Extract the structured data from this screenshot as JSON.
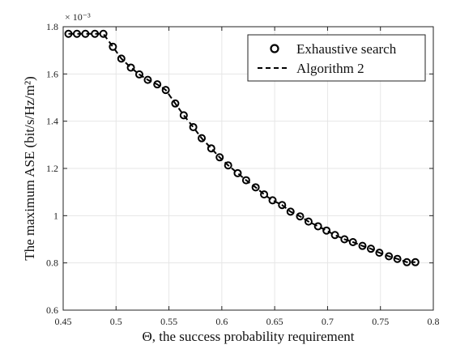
{
  "chart_data": {
    "type": "line",
    "title": "",
    "xlabel": "Θ, the success probability requirement",
    "ylabel": "The maximum ASE (bit/s/Hz/m²)",
    "y_multiplier_label": "× 10⁻³",
    "xlim": [
      0.45,
      0.8
    ],
    "ylim": [
      0.6,
      1.8
    ],
    "x_ticks": [
      "0.45",
      "0.5",
      "0.55",
      "0.6",
      "0.65",
      "0.7",
      "0.75",
      "0.8"
    ],
    "y_ticks": [
      "0.6",
      "0.8",
      "1",
      "1.2",
      "1.4",
      "1.6",
      "1.8"
    ],
    "grid": true,
    "legend_position": "top-right",
    "series": [
      {
        "name": "Exhaustive search",
        "style": "markers-circle",
        "color": "#000000",
        "x": [
          0.455,
          0.463,
          0.471,
          0.48,
          0.488,
          0.497,
          0.505,
          0.514,
          0.522,
          0.53,
          0.539,
          0.547,
          0.556,
          0.564,
          0.573,
          0.581,
          0.59,
          0.598,
          0.606,
          0.615,
          0.623,
          0.632,
          0.64,
          0.648,
          0.657,
          0.665,
          0.674,
          0.682,
          0.691,
          0.699,
          0.707,
          0.716,
          0.724,
          0.733,
          0.741,
          0.749,
          0.758,
          0.766,
          0.775,
          0.783
        ],
        "y": [
          1.77,
          1.77,
          1.77,
          1.77,
          1.77,
          1.715,
          1.665,
          1.627,
          1.598,
          1.575,
          1.556,
          1.532,
          1.475,
          1.425,
          1.375,
          1.328,
          1.285,
          1.247,
          1.213,
          1.18,
          1.15,
          1.12,
          1.09,
          1.065,
          1.045,
          1.017,
          0.997,
          0.975,
          0.955,
          0.937,
          0.918,
          0.9,
          0.888,
          0.872,
          0.86,
          0.843,
          0.828,
          0.817,
          0.803,
          0.803
        ]
      },
      {
        "name": "Algorithm 2",
        "style": "dashed-line",
        "color": "#000000",
        "x": [
          0.455,
          0.463,
          0.471,
          0.48,
          0.488,
          0.497,
          0.505,
          0.514,
          0.522,
          0.53,
          0.539,
          0.547,
          0.556,
          0.564,
          0.573,
          0.581,
          0.59,
          0.598,
          0.606,
          0.615,
          0.623,
          0.632,
          0.64,
          0.648,
          0.657,
          0.665,
          0.674,
          0.682,
          0.691,
          0.699,
          0.707,
          0.716,
          0.724,
          0.733,
          0.741,
          0.749,
          0.758,
          0.766,
          0.775,
          0.783
        ],
        "y": [
          1.77,
          1.77,
          1.77,
          1.77,
          1.77,
          1.715,
          1.665,
          1.627,
          1.598,
          1.575,
          1.556,
          1.532,
          1.475,
          1.425,
          1.375,
          1.328,
          1.285,
          1.247,
          1.213,
          1.18,
          1.15,
          1.12,
          1.09,
          1.065,
          1.045,
          1.017,
          0.997,
          0.975,
          0.955,
          0.937,
          0.918,
          0.9,
          0.888,
          0.872,
          0.86,
          0.843,
          0.828,
          0.817,
          0.803,
          0.803
        ]
      }
    ]
  }
}
